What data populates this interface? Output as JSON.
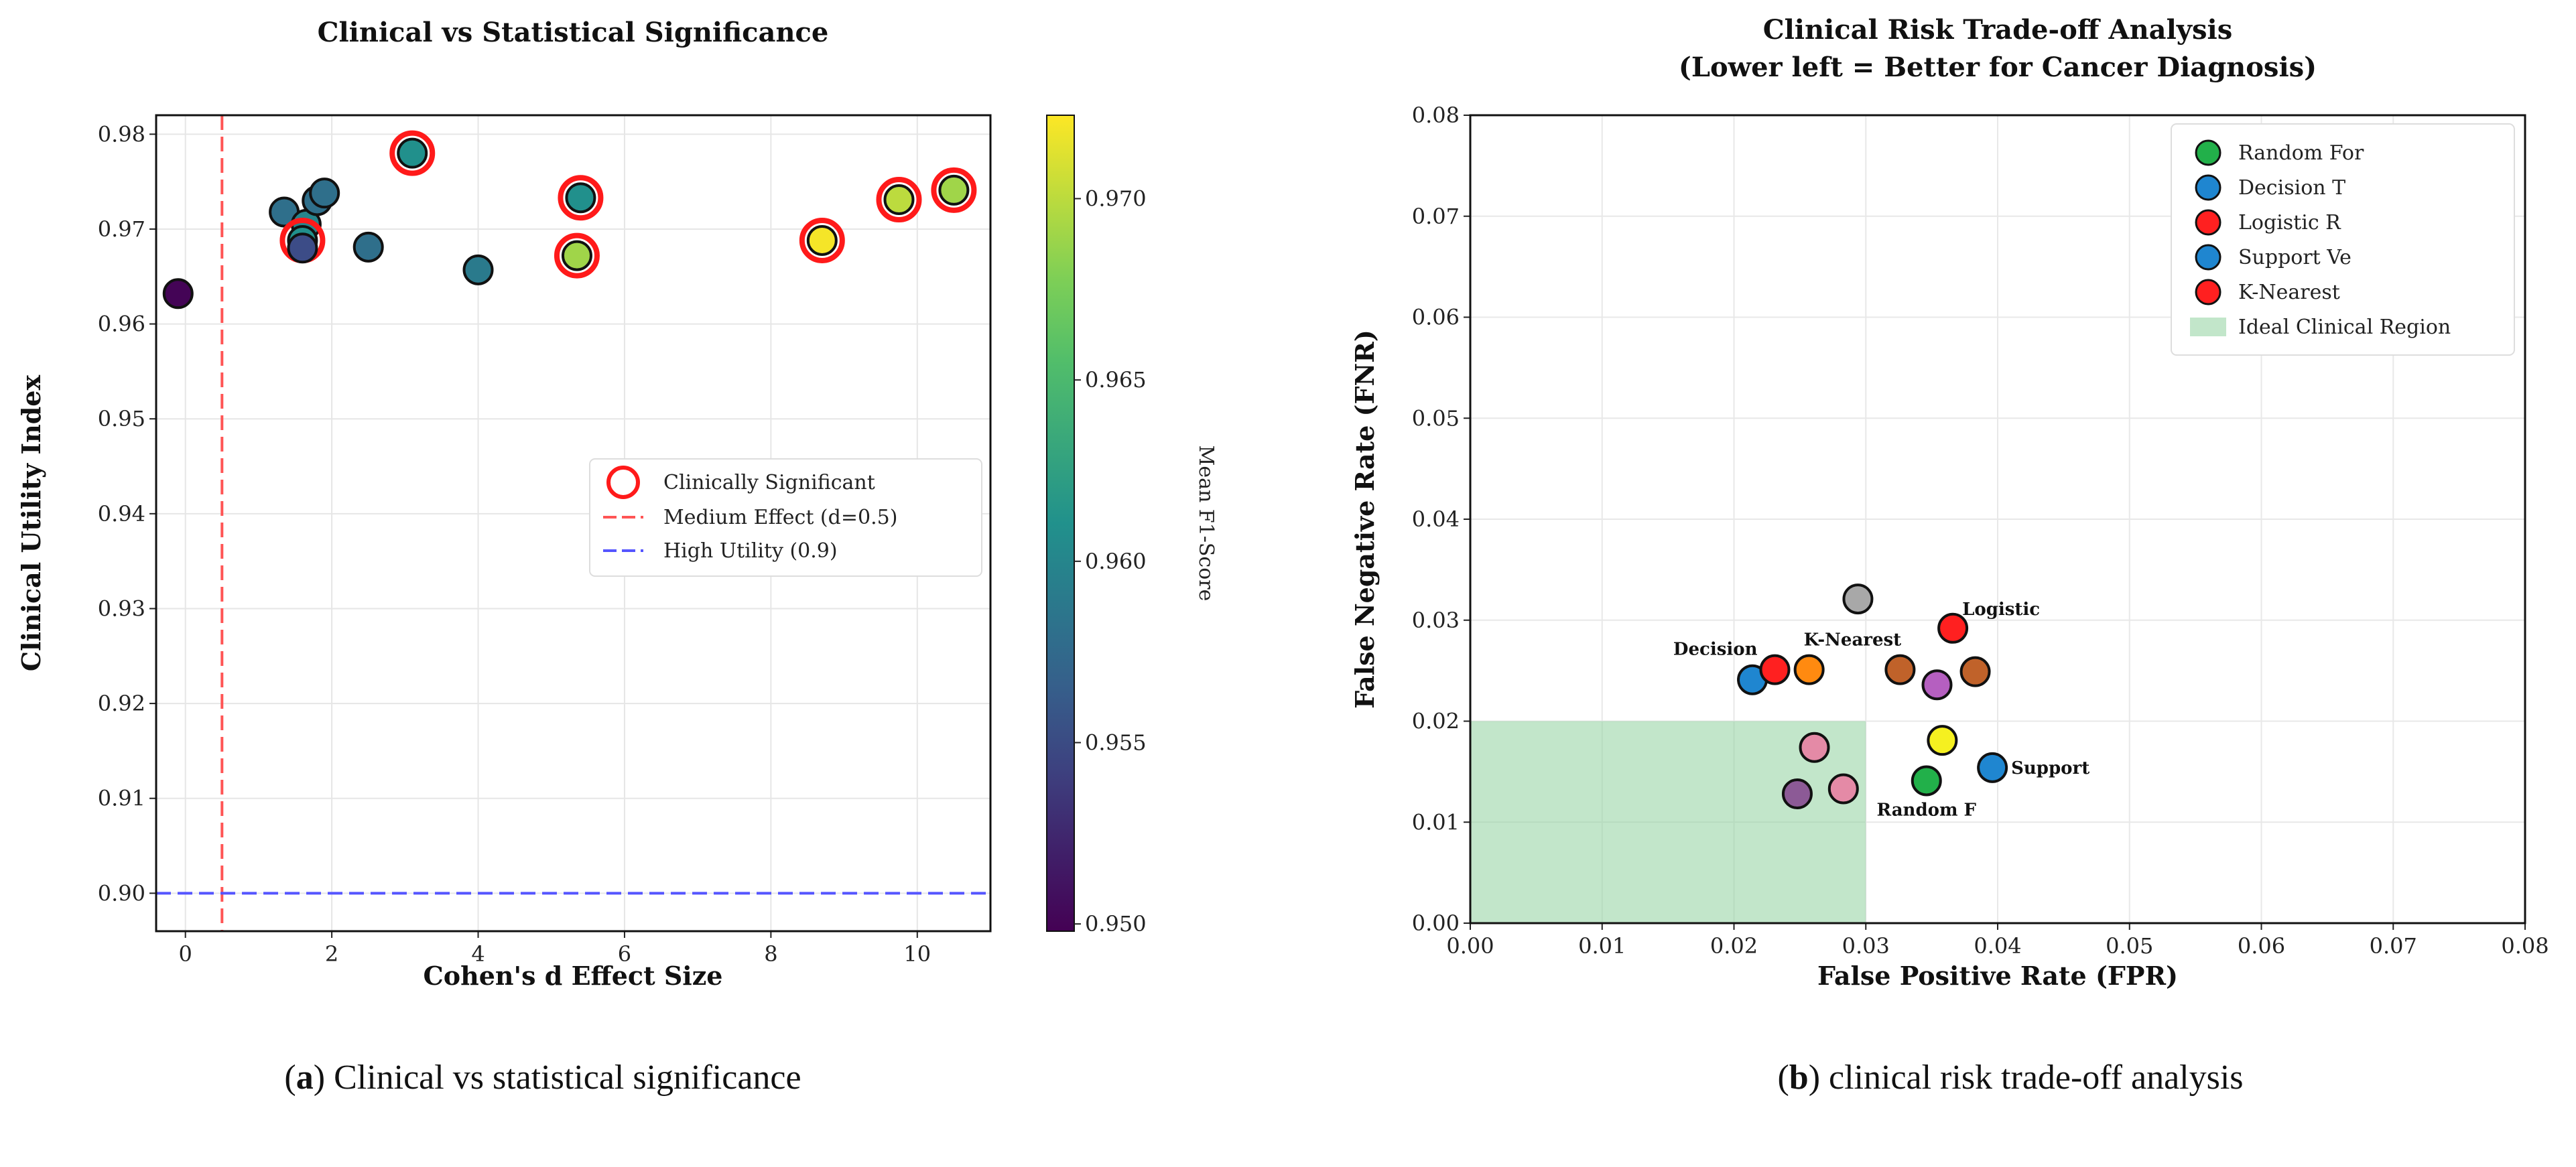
{
  "chart_data": [
    {
      "type": "scatter",
      "title": "Clinical vs Statistical Significance",
      "xlabel": "Cohen's d Effect Size",
      "ylabel": "Clinical Utility Index",
      "xlim": [
        -0.4,
        11
      ],
      "ylim": [
        0.896,
        0.982
      ],
      "xticks": [
        0,
        2,
        4,
        6,
        8,
        10
      ],
      "yticks": [
        0.9,
        0.91,
        0.92,
        0.93,
        0.94,
        0.95,
        0.96,
        0.97,
        0.98
      ],
      "grid": true,
      "colorbar": {
        "label": "Mean F1-Score",
        "range": [
          0.9498,
          0.9723
        ],
        "ticks": [
          0.95,
          0.955,
          0.96,
          0.965,
          0.97
        ]
      },
      "reference_lines": [
        {
          "orientation": "vertical",
          "value": 0.5,
          "color": "#ff5555",
          "label": "Medium Effect (d=0.5)"
        },
        {
          "orientation": "horizontal",
          "value": 0.9,
          "color": "#5555ff",
          "label": "High Utility (0.9)"
        }
      ],
      "legend": {
        "placement": "center-right",
        "entries": [
          "Clinically Significant",
          "Medium Effect (d=0.5)",
          "High Utility (0.9)"
        ]
      },
      "points": [
        {
          "x": -0.1,
          "y": 0.9632,
          "c": 0.95,
          "sig": false
        },
        {
          "x": 1.35,
          "y": 0.9718,
          "c": 0.958,
          "sig": false
        },
        {
          "x": 1.65,
          "y": 0.9705,
          "c": 0.96,
          "sig": false
        },
        {
          "x": 1.8,
          "y": 0.973,
          "c": 0.958,
          "sig": false
        },
        {
          "x": 1.9,
          "y": 0.9738,
          "c": 0.958,
          "sig": false
        },
        {
          "x": 1.6,
          "y": 0.9688,
          "c": 0.961,
          "sig": true
        },
        {
          "x": 1.6,
          "y": 0.968,
          "c": 0.955,
          "sig": false
        },
        {
          "x": 2.5,
          "y": 0.9681,
          "c": 0.958,
          "sig": false
        },
        {
          "x": 3.1,
          "y": 0.978,
          "c": 0.961,
          "sig": true
        },
        {
          "x": 4.0,
          "y": 0.9657,
          "c": 0.959,
          "sig": false
        },
        {
          "x": 5.4,
          "y": 0.9733,
          "c": 0.961,
          "sig": true
        },
        {
          "x": 5.35,
          "y": 0.9672,
          "c": 0.969,
          "sig": true
        },
        {
          "x": 8.7,
          "y": 0.9688,
          "c": 0.972,
          "sig": true
        },
        {
          "x": 9.75,
          "y": 0.9731,
          "c": 0.97,
          "sig": true
        },
        {
          "x": 10.5,
          "y": 0.9741,
          "c": 0.969,
          "sig": true
        }
      ]
    },
    {
      "type": "scatter",
      "title": "Clinical Risk Trade-off Analysis",
      "subtitle": "(Lower left = Better for Cancer Diagnosis)",
      "xlabel": "False Positive Rate (FPR)",
      "ylabel": "False Negative Rate (FNR)",
      "xlim": [
        0,
        0.08
      ],
      "ylim": [
        0,
        0.08
      ],
      "xticks": [
        "0.00",
        "0.01",
        "0.02",
        "0.03",
        "0.04",
        "0.05",
        "0.06",
        "0.07",
        "0.08"
      ],
      "yticks": [
        "0.00",
        "0.01",
        "0.02",
        "0.03",
        "0.04",
        "0.05",
        "0.06",
        "0.07",
        "0.08"
      ],
      "grid": true,
      "ideal_region": {
        "x": [
          0,
          0.03
        ],
        "y": [
          0,
          0.02
        ],
        "color": "#8fd19e",
        "label": "Ideal Clinical Region"
      },
      "legend": {
        "placement": "top-right",
        "entries": [
          {
            "label": "Random For",
            "color": "#22b04a"
          },
          {
            "label": "Decision T",
            "color": "#1f86d0"
          },
          {
            "label": "Logistic R",
            "color": "#ff2020"
          },
          {
            "label": "Support Ve",
            "color": "#1f86d0"
          },
          {
            "label": "K-Nearest",
            "color": "#ff2020"
          }
        ]
      },
      "points": [
        {
          "x": 0.0294,
          "y": 0.0321,
          "color": "#a8a8a8",
          "label": ""
        },
        {
          "x": 0.0366,
          "y": 0.0292,
          "color": "#ff2020",
          "label": "Logistic"
        },
        {
          "x": 0.0214,
          "y": 0.0241,
          "color": "#1f86d0",
          "label": ""
        },
        {
          "x": 0.0231,
          "y": 0.0251,
          "color": "#ff2020",
          "label": "Decision"
        },
        {
          "x": 0.0257,
          "y": 0.0251,
          "color": "#ff8a10",
          "label": "K-Nearest"
        },
        {
          "x": 0.0326,
          "y": 0.0251,
          "color": "#c0622a",
          "label": ""
        },
        {
          "x": 0.0354,
          "y": 0.0236,
          "color": "#b55fc0",
          "label": ""
        },
        {
          "x": 0.0383,
          "y": 0.0249,
          "color": "#c0622a",
          "label": ""
        },
        {
          "x": 0.0358,
          "y": 0.0181,
          "color": "#f5f020",
          "label": ""
        },
        {
          "x": 0.0396,
          "y": 0.0154,
          "color": "#1f86d0",
          "label": "Support"
        },
        {
          "x": 0.0346,
          "y": 0.0141,
          "color": "#22b04a",
          "label": "Random F"
        },
        {
          "x": 0.0261,
          "y": 0.0174,
          "color": "#e48aa6",
          "label": ""
        },
        {
          "x": 0.0283,
          "y": 0.0133,
          "color": "#e48aa6",
          "label": ""
        },
        {
          "x": 0.0248,
          "y": 0.0128,
          "color": "#8c5a96",
          "label": ""
        }
      ]
    }
  ],
  "captions": {
    "a_letter": "a",
    "a_text": " Clinical vs statistical significance",
    "b_letter": "b",
    "b_text": " clinical risk trade-off analysis"
  }
}
